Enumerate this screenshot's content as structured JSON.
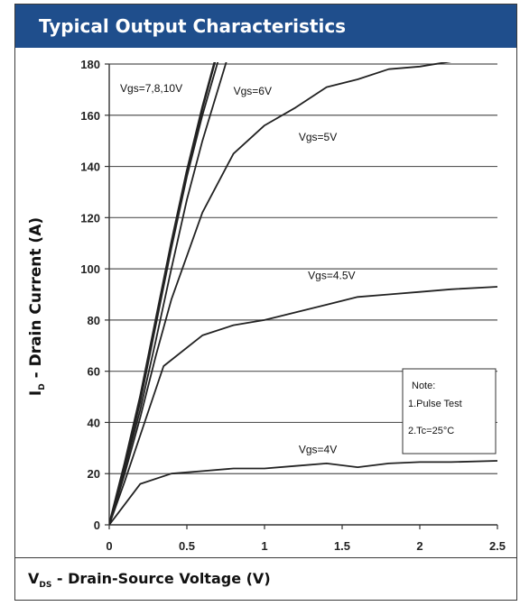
{
  "title": "Typical Output Characteristics",
  "ylabel": {
    "main": "I",
    "sub": "D",
    "rest": " - Drain Current (A)"
  },
  "xlabel": {
    "main": "V",
    "sub": "DS",
    "rest": " - Drain-Source Voltage (V)"
  },
  "note": {
    "title": "Note:",
    "lines": [
      "1.Pulse Test",
      "2.Tc=25°C"
    ]
  },
  "chart_data": {
    "type": "line",
    "xlim": [
      0,
      2.5
    ],
    "ylim": [
      0,
      180
    ],
    "x_ticks": [
      0,
      0.5,
      1,
      1.5,
      2,
      2.5
    ],
    "x_tick_labels": [
      "0",
      "0.5",
      "1",
      "1.5",
      "2",
      "2.5"
    ],
    "y_ticks": [
      0,
      20,
      40,
      60,
      80,
      100,
      120,
      140,
      160,
      180
    ],
    "y_tick_labels": [
      "0",
      "20",
      "40",
      "60",
      "80",
      "100",
      "120",
      "140",
      "160",
      "180"
    ],
    "grid": "horizontal",
    "series": [
      {
        "name": "Vgs=7,8,10V",
        "label_at": [
          0.07,
          169
        ],
        "x": [
          0,
          0.1,
          0.2,
          0.3,
          0.4,
          0.5,
          0.6,
          0.68
        ],
        "y": [
          0,
          24,
          50,
          80,
          110,
          138,
          163,
          181
        ]
      },
      {
        "name": "",
        "x": [
          0,
          0.1,
          0.2,
          0.3,
          0.4,
          0.5,
          0.6,
          0.7
        ],
        "y": [
          0,
          23,
          48,
          78,
          108,
          136,
          160,
          181
        ]
      },
      {
        "name": "Vgs=6V",
        "label_at": [
          0.8,
          168
        ],
        "x": [
          0,
          0.1,
          0.2,
          0.3,
          0.4,
          0.5,
          0.6,
          0.7,
          0.76
        ],
        "y": [
          0,
          22,
          45,
          72,
          100,
          127,
          150,
          170,
          182
        ]
      },
      {
        "name": "Vgs=5V",
        "label_at": [
          1.22,
          150
        ],
        "x": [
          0,
          0.1,
          0.2,
          0.3,
          0.4,
          0.5,
          0.6,
          0.8,
          1.0,
          1.2,
          1.4,
          1.6,
          1.8,
          2.0,
          2.2
        ],
        "y": [
          0,
          20,
          42,
          66,
          88,
          105,
          122,
          145,
          156,
          163,
          171,
          174,
          178,
          179,
          181
        ]
      },
      {
        "name": "Vgs=4.5V",
        "label_at": [
          1.28,
          96
        ],
        "x": [
          0,
          0.1,
          0.2,
          0.35,
          0.6,
          0.8,
          1.0,
          1.2,
          1.4,
          1.6,
          1.8,
          2.0,
          2.2,
          2.5
        ],
        "y": [
          0,
          17,
          35,
          62,
          74,
          78,
          80,
          83,
          86,
          89,
          90,
          91,
          92,
          93
        ]
      },
      {
        "name": "Vgs=4V",
        "label_at": [
          1.22,
          28
        ],
        "x": [
          0,
          0.2,
          0.4,
          0.6,
          0.8,
          1.0,
          1.2,
          1.4,
          1.6,
          1.8,
          2.0,
          2.2,
          2.5
        ],
        "y": [
          0,
          16,
          20,
          21,
          22,
          22,
          23,
          24,
          22.5,
          24,
          24.5,
          24.5,
          25
        ]
      }
    ]
  }
}
